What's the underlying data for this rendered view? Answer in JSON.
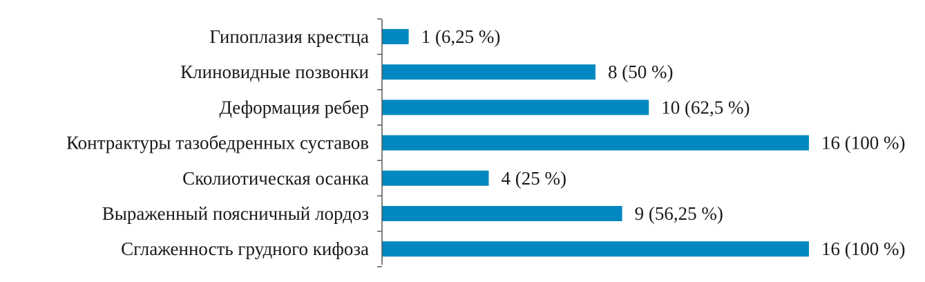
{
  "chart_data": {
    "type": "bar",
    "orientation": "horizontal",
    "categories": [
      "Гипоплазия крестца",
      "Клиновидные позвонки",
      "Деформация ребер",
      "Контрактуры тазобедренных суставов",
      "Сколиотическая осанка",
      "Выраженный поясничный лордоз",
      "Сглаженность грудного кифоза"
    ],
    "values": [
      1,
      8,
      10,
      16,
      4,
      9,
      16
    ],
    "value_labels": [
      "1 (6,25 %)",
      "8 (50 %)",
      "10 (62,5 %)",
      "16 (100 %)",
      "4 (25 %)",
      "9 (56,25 %)",
      "16 (100 %)"
    ],
    "xlim": [
      0,
      16
    ],
    "grid": false,
    "legend": "none",
    "bar_color": "#0288c0",
    "axis_color": "#555555"
  }
}
